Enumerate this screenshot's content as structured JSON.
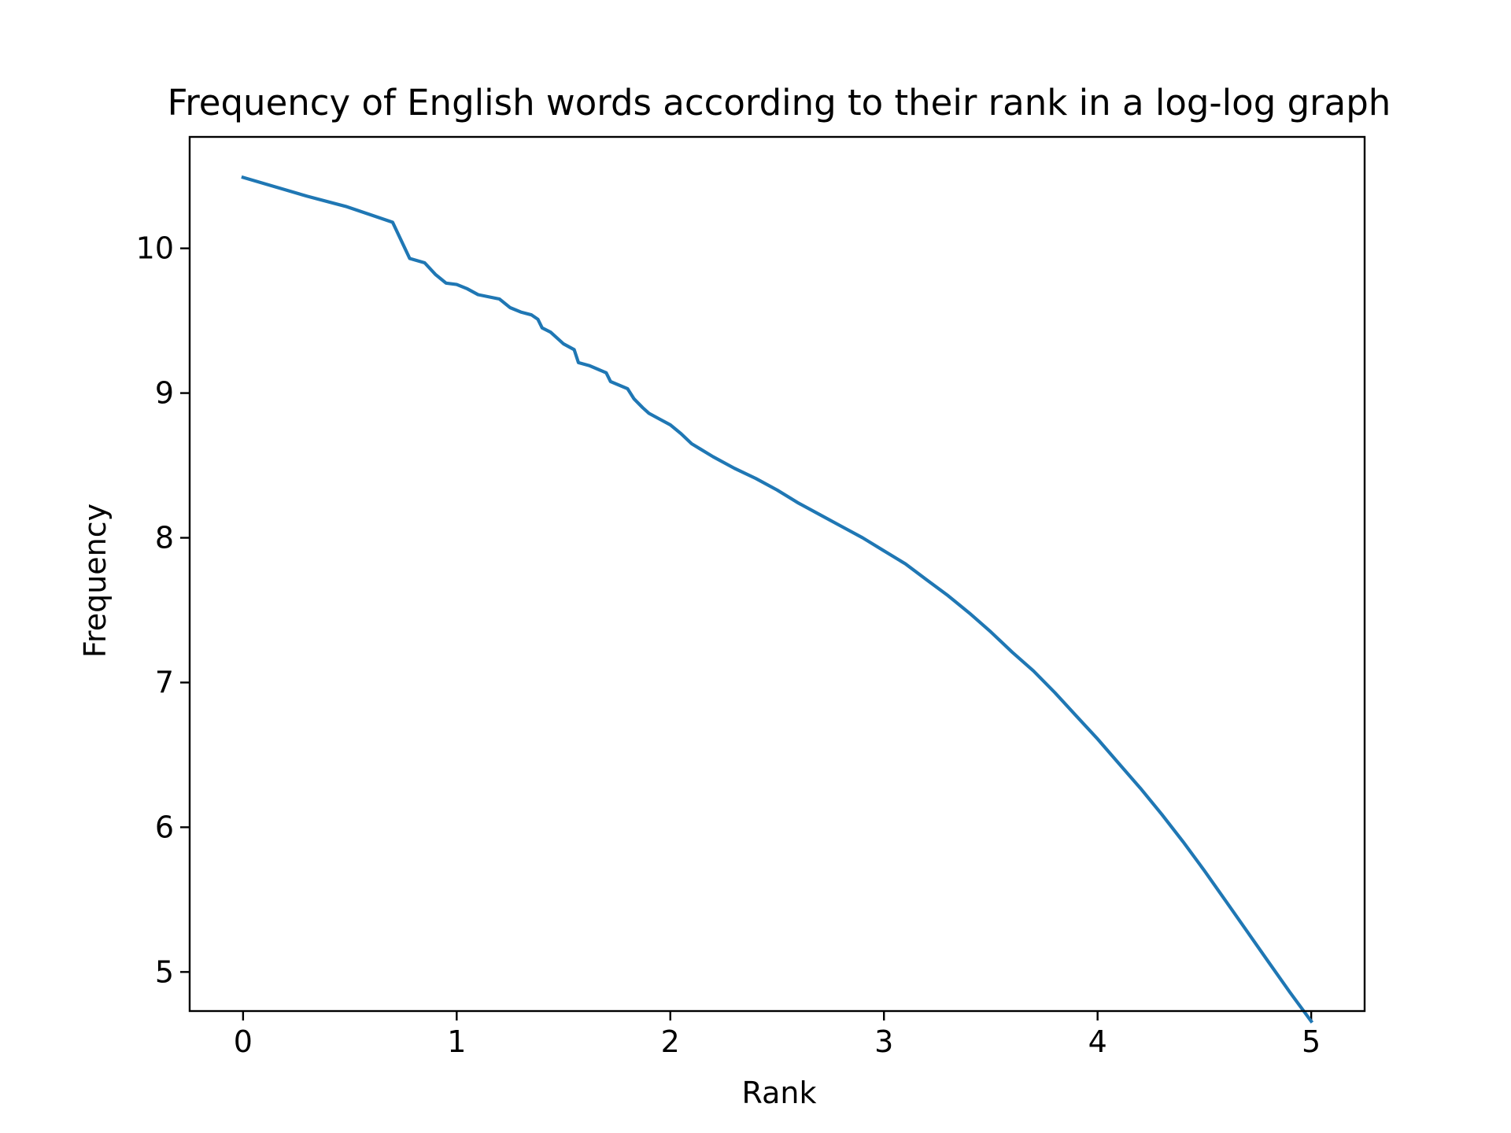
{
  "chart_data": {
    "type": "line",
    "title": "Frequency of English words according to their rank in a log-log graph",
    "xlabel": "Rank",
    "ylabel": "Frequency",
    "xlim": [
      -0.25,
      5.25
    ],
    "ylim": [
      4.73,
      10.77
    ],
    "xticks": [
      0,
      1,
      2,
      3,
      4,
      5
    ],
    "yticks": [
      5,
      6,
      7,
      8,
      9,
      10
    ],
    "xtick_labels": [
      "0",
      "1",
      "2",
      "3",
      "4",
      "5"
    ],
    "ytick_labels": [
      "5",
      "6",
      "7",
      "8",
      "9",
      "10"
    ],
    "grid": false,
    "series": [
      {
        "color": "#1f77b4",
        "x": [
          0,
          0.3,
          0.48,
          0.6,
          0.7,
          0.78,
          0.85,
          0.9,
          0.95,
          1.0,
          1.05,
          1.1,
          1.2,
          1.25,
          1.3,
          1.35,
          1.38,
          1.4,
          1.44,
          1.5,
          1.55,
          1.57,
          1.62,
          1.7,
          1.72,
          1.8,
          1.83,
          1.87,
          1.9,
          1.95,
          2.0,
          2.05,
          2.1,
          2.2,
          2.3,
          2.4,
          2.5,
          2.6,
          2.7,
          2.8,
          2.9,
          3.0,
          3.1,
          3.2,
          3.3,
          3.4,
          3.5,
          3.6,
          3.7,
          3.8,
          3.9,
          4.0,
          4.1,
          4.2,
          4.3,
          4.4,
          4.5,
          4.6,
          4.7,
          4.8,
          4.9,
          5.0
        ],
        "y": [
          10.49,
          10.36,
          10.29,
          10.23,
          10.18,
          9.93,
          9.9,
          9.82,
          9.76,
          9.75,
          9.72,
          9.68,
          9.65,
          9.59,
          9.56,
          9.54,
          9.51,
          9.45,
          9.42,
          9.34,
          9.3,
          9.21,
          9.19,
          9.14,
          9.08,
          9.03,
          8.96,
          8.9,
          8.86,
          8.82,
          8.78,
          8.72,
          8.65,
          8.56,
          8.48,
          8.41,
          8.33,
          8.24,
          8.16,
          8.08,
          8.0,
          7.91,
          7.82,
          7.71,
          7.6,
          7.48,
          7.35,
          7.21,
          7.08,
          6.93,
          6.77,
          6.61,
          6.44,
          6.27,
          6.09,
          5.9,
          5.7,
          5.49,
          5.28,
          5.07,
          4.86,
          4.66
        ]
      }
    ]
  }
}
